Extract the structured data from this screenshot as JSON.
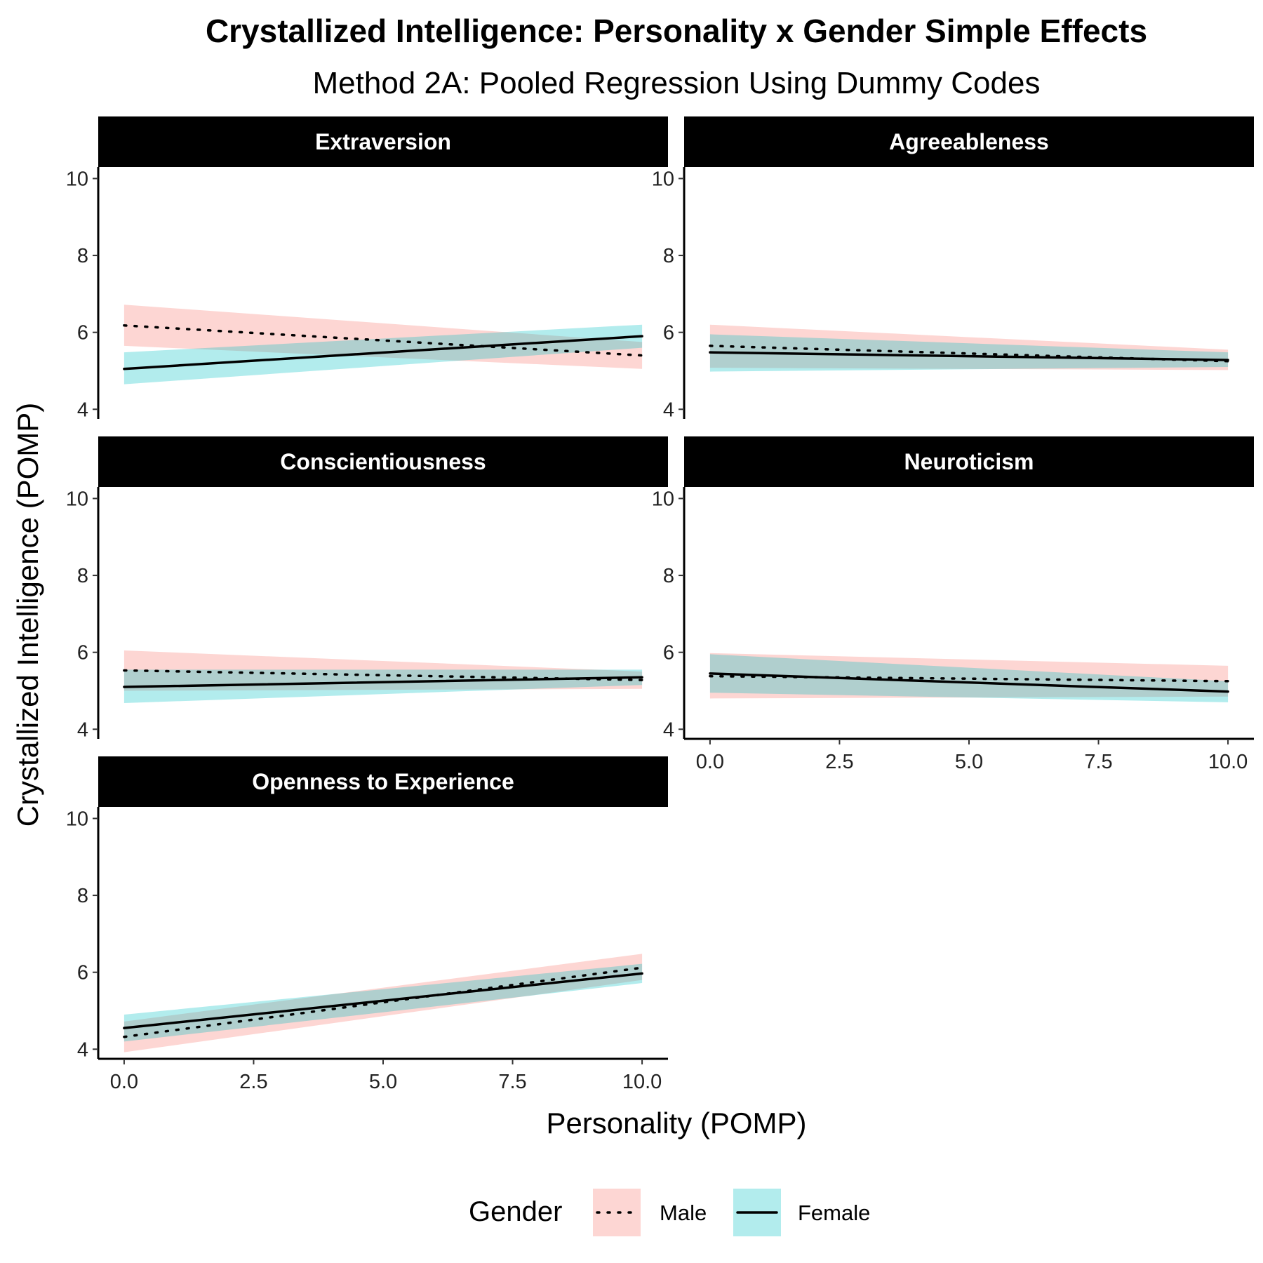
{
  "chart_data": {
    "type": "line",
    "title": "Crystallized Intelligence: Personality x Gender Simple Effects",
    "subtitle": "Method 2A: Pooled Regression Using Dummy Codes",
    "xlabel": "Personality (POMP)",
    "ylabel": "Crystallized Intelligence (POMP)",
    "xlim": [
      -0.5,
      10.5
    ],
    "ylim": [
      3.75,
      10.3
    ],
    "xticks": [
      "0.0",
      "2.5",
      "5.0",
      "7.5",
      "10.0"
    ],
    "yticks": [
      "4",
      "6",
      "8",
      "10"
    ],
    "grid": false,
    "legend": {
      "title": "Gender",
      "position": "bottom",
      "entries": [
        {
          "label": "Male",
          "linetype": "dotted",
          "fill": "#F8766D"
        },
        {
          "label": "Female",
          "linetype": "solid",
          "fill": "#00BFC4"
        }
      ]
    },
    "panels": [
      {
        "label": "Extraversion",
        "x": [
          0,
          10
        ],
        "series": [
          {
            "name": "Male",
            "y": [
              6.18,
              5.4
            ],
            "lower": [
              5.65,
              5.05
            ],
            "upper": [
              6.72,
              5.75
            ]
          },
          {
            "name": "Female",
            "y": [
              5.05,
              5.9
            ],
            "lower": [
              4.65,
              5.6
            ],
            "upper": [
              5.48,
              6.2
            ]
          }
        ]
      },
      {
        "label": "Agreeableness",
        "x": [
          0,
          10
        ],
        "series": [
          {
            "name": "Male",
            "y": [
              5.65,
              5.25
            ],
            "lower": [
              5.08,
              5.02
            ],
            "upper": [
              6.2,
              5.55
            ]
          },
          {
            "name": "Female",
            "y": [
              5.48,
              5.28
            ],
            "lower": [
              4.98,
              5.1
            ],
            "upper": [
              5.95,
              5.48
            ]
          }
        ]
      },
      {
        "label": "Conscientiousness",
        "x": [
          0,
          10
        ],
        "series": [
          {
            "name": "Male",
            "y": [
              5.53,
              5.28
            ],
            "lower": [
              5.0,
              5.05
            ],
            "upper": [
              6.05,
              5.5
            ]
          },
          {
            "name": "Female",
            "y": [
              5.1,
              5.35
            ],
            "lower": [
              4.68,
              5.15
            ],
            "upper": [
              5.55,
              5.55
            ]
          }
        ]
      },
      {
        "label": "Neuroticism",
        "x": [
          0,
          10
        ],
        "series": [
          {
            "name": "Male",
            "y": [
              5.38,
              5.25
            ],
            "lower": [
              4.8,
              4.85
            ],
            "upper": [
              5.98,
              5.65
            ]
          },
          {
            "name": "Female",
            "y": [
              5.45,
              4.98
            ],
            "lower": [
              4.95,
              4.7
            ],
            "upper": [
              5.95,
              5.25
            ]
          }
        ]
      },
      {
        "label": "Openness to Experience",
        "x": [
          0,
          10
        ],
        "series": [
          {
            "name": "Male",
            "y": [
              4.32,
              6.12
            ],
            "lower": [
              3.92,
              5.8
            ],
            "upper": [
              4.72,
              6.48
            ]
          },
          {
            "name": "Female",
            "y": [
              4.55,
              5.97
            ],
            "lower": [
              4.2,
              5.72
            ],
            "upper": [
              4.9,
              6.22
            ]
          }
        ]
      }
    ]
  }
}
